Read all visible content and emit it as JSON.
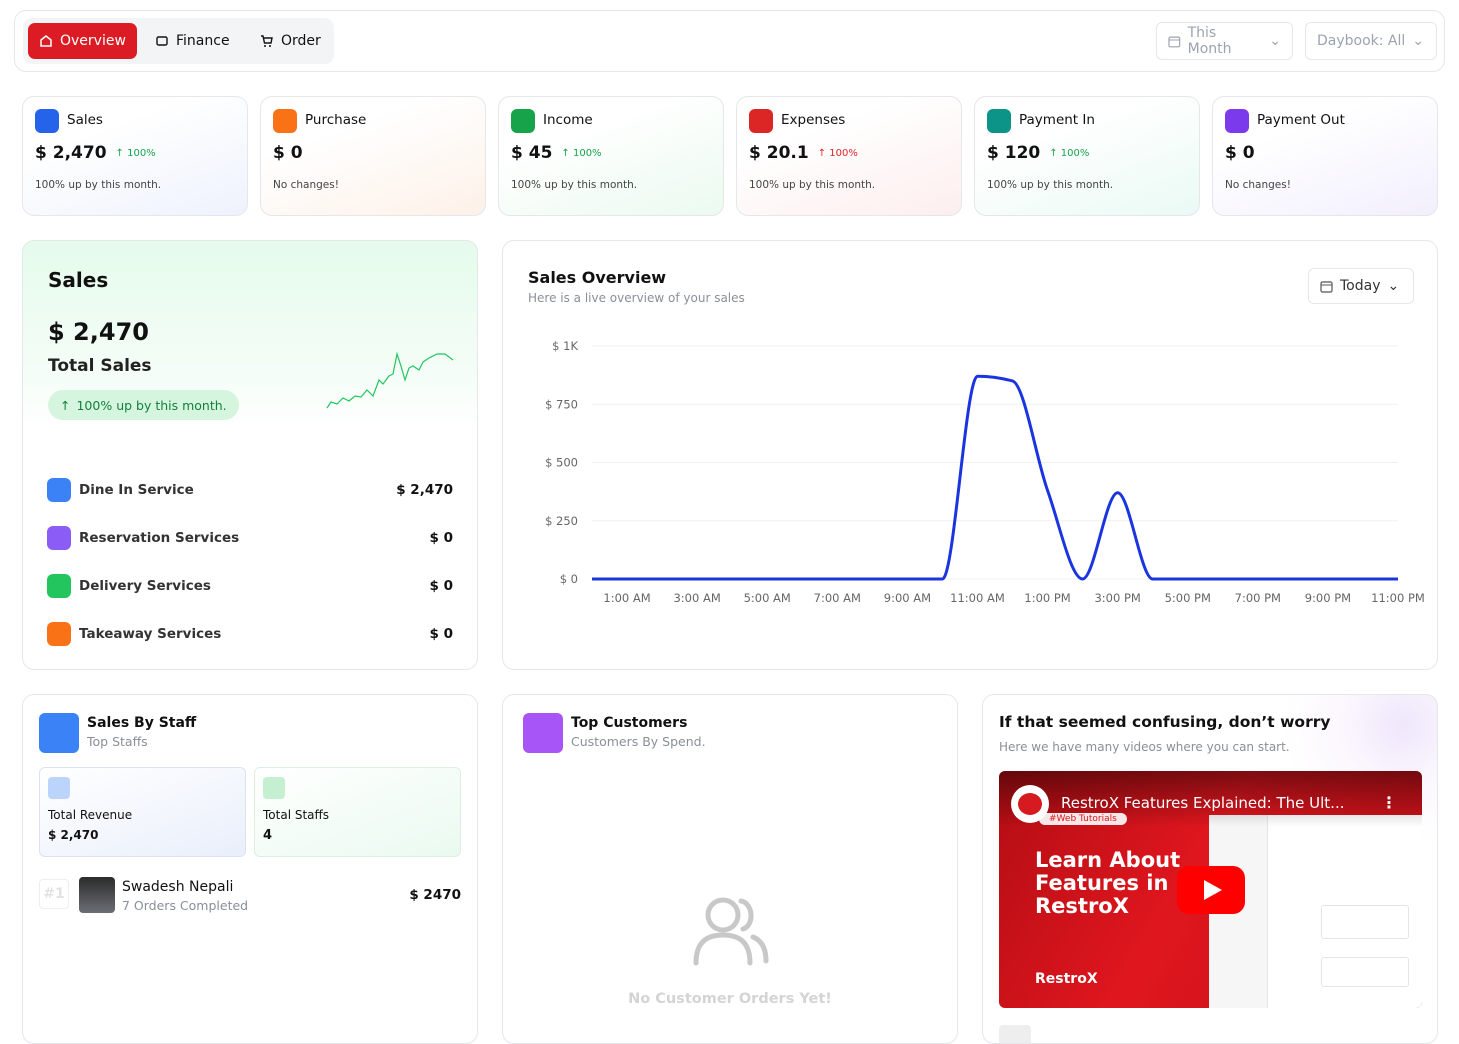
{
  "tabs": [
    "Overview",
    "Finance",
    "Order"
  ],
  "filters": [
    "This Month",
    "Daybook: All"
  ],
  "stats": [
    {
      "title": "Sales",
      "amount": "$ 2,470",
      "change": "100%",
      "note": "100% up by this month."
    },
    {
      "title": "Purchase",
      "amount": "$ 0",
      "note": "No changes!"
    },
    {
      "title": "Income",
      "amount": "$ 45",
      "change": "100%",
      "note": "100% up by this month."
    },
    {
      "title": "Expenses",
      "amount": "$ 20.1",
      "change": "100%",
      "note": "100% up by this month."
    },
    {
      "title": "Payment In",
      "amount": "$ 120",
      "change": "100%",
      "note": "100% up by this month."
    },
    {
      "title": "Payment Out",
      "amount": "$ 0",
      "note": "No changes!"
    }
  ],
  "sales_card": {
    "title": "Sales",
    "amount": "$ 2,470",
    "label": "Total Sales",
    "badge": "100% up by this month.",
    "services": [
      {
        "name": "Dine In Service",
        "amount": "$ 2,470"
      },
      {
        "name": "Reservation Services",
        "amount": "$ 0"
      },
      {
        "name": "Delivery Services",
        "amount": "$ 0"
      },
      {
        "name": "Takeaway Services",
        "amount": "$ 0"
      }
    ]
  },
  "chart_data": {
    "type": "line",
    "title": "Sales Overview",
    "subtitle": "Here is a live overview of your sales",
    "filter": "Today",
    "x": [
      0,
      1,
      2,
      3,
      4,
      5,
      6,
      7,
      8,
      9,
      10,
      11,
      12,
      13,
      14,
      15,
      16,
      17,
      18,
      19,
      20,
      21,
      22,
      23
    ],
    "values": [
      0,
      0,
      0,
      0,
      0,
      0,
      0,
      0,
      0,
      0,
      0,
      870,
      850,
      380,
      0,
      370,
      0,
      0,
      0,
      0,
      0,
      0,
      0,
      0
    ],
    "color": "#1a35e0",
    "xlim": [
      0,
      23
    ],
    "ylim": [
      0,
      1000
    ],
    "xticks": [
      {
        "value": 1,
        "label": "1:00 AM"
      },
      {
        "value": 3,
        "label": "3:00 AM"
      },
      {
        "value": 5,
        "label": "5:00 AM"
      },
      {
        "value": 7,
        "label": "7:00 AM"
      },
      {
        "value": 9,
        "label": "9:00 AM"
      },
      {
        "value": 11,
        "label": "11:00 AM"
      },
      {
        "value": 13,
        "label": "1:00 PM"
      },
      {
        "value": 15,
        "label": "3:00 PM"
      },
      {
        "value": 17,
        "label": "5:00 PM"
      },
      {
        "value": 19,
        "label": "7:00 PM"
      },
      {
        "value": 21,
        "label": "9:00 PM"
      },
      {
        "value": 23,
        "label": "11:00 PM"
      }
    ],
    "yticks": [
      {
        "value": 0,
        "label": "$ 0"
      },
      {
        "value": 250,
        "label": "$ 250"
      },
      {
        "value": 500,
        "label": "$ 500"
      },
      {
        "value": 750,
        "label": "$ 750"
      },
      {
        "value": 1000,
        "label": "$ 1K"
      }
    ],
    "grid": true
  },
  "staff_card": {
    "title": "Sales By Staff",
    "subtitle": "Top Staffs",
    "revenue_label": "Total Revenue",
    "revenue": "$ 2,470",
    "staffs_label": "Total Staffs",
    "staffs": "4",
    "top": [
      {
        "rank": "#1",
        "name": "Swadesh Nepali",
        "orders": "7 Orders Completed",
        "amount": "$ 2470"
      }
    ]
  },
  "customers_card": {
    "title": "Top Customers",
    "subtitle": "Customers By Spend.",
    "empty": "No Customer Orders Yet!"
  },
  "video_card": {
    "title": "If that seemed confusing, don’t worry",
    "subtitle": "Here we have many videos where you can start.",
    "video_title": "RestroX Features Explained: The Ult...",
    "tag": "#Web Tutorials",
    "headline": "Learn About Features in RestroX",
    "brand": "RestroX"
  }
}
